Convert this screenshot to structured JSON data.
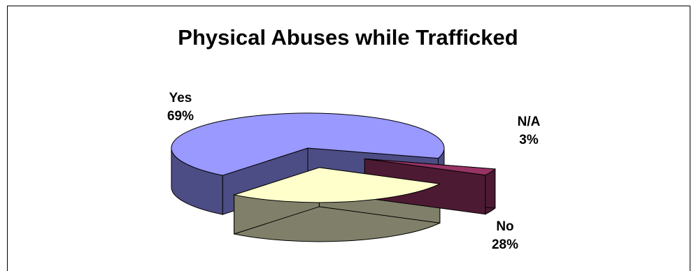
{
  "chart_data": {
    "type": "pie",
    "title": "Physical Abuses while Trafficked",
    "style": "3d-exploded",
    "legend": "none",
    "slices": [
      {
        "label": "Yes",
        "value": 69,
        "display": "69%",
        "top_color": "#9999FF",
        "side_color": "#4D4D85"
      },
      {
        "label": "No",
        "value": 28,
        "display": "28%",
        "top_color": "#FFFFCC",
        "side_color": "#80806A"
      },
      {
        "label": "N/A",
        "value": 3,
        "display": "3%",
        "top_color": "#993366",
        "side_color": "#4D1A33"
      }
    ]
  }
}
